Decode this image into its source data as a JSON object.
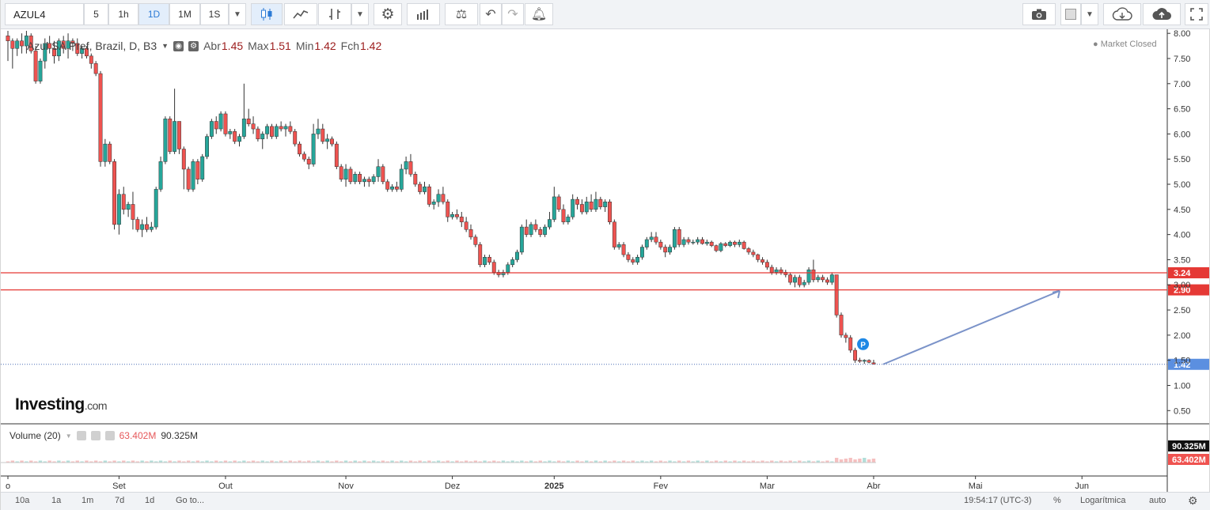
{
  "toolbar": {
    "symbol": "AZUL4",
    "intervals": [
      "5",
      "1h",
      "1D",
      "1M",
      "1S"
    ],
    "active_interval": "1D",
    "icons": [
      "dropdown-icon",
      "candles-icon",
      "line-icon",
      "bars-icon",
      "dropdown-icon",
      "gear-icon",
      "indicators-icon",
      "scales-icon",
      "undo-icon",
      "redo-icon",
      "alert-icon",
      "camera-icon",
      "color-box-icon",
      "dropdown-icon",
      "cloud-download-icon",
      "cloud-upload-icon",
      "fullscreen-icon"
    ]
  },
  "legend": {
    "title": "Azul SA Pref, Brazil, D, B3",
    "open_label": "Abr",
    "open": "1.45",
    "high_label": "Max",
    "high": "1.51",
    "low_label": "Min",
    "low": "1.42",
    "close_label": "Fch",
    "close": "1.42",
    "market_status": "Market Closed"
  },
  "logo": {
    "brand": "Investing",
    "suffix": ".com"
  },
  "volume": {
    "label": "Volume (20)",
    "val1": "63.402M",
    "val2": "90.325M"
  },
  "bottom": {
    "ranges": [
      "10a",
      "1a",
      "1m",
      "7d",
      "1d"
    ],
    "goto": "Go to...",
    "time": "19:54:17 (UTC-3)",
    "percent": "%",
    "log": "Logarítmica",
    "auto": "auto"
  },
  "colors": {
    "up": "#26a69a",
    "down": "#ef5350",
    "level": "#e53935",
    "arrow": "#7b93c9",
    "price_tag": "#5b8fe0"
  },
  "chart_data": {
    "type": "candlestick",
    "symbol": "AZUL4",
    "yaxis_ticks": [
      8.0,
      7.5,
      7.0,
      6.5,
      6.0,
      5.5,
      5.0,
      4.5,
      4.0,
      3.5,
      3.0,
      2.5,
      2.0,
      1.5,
      1.0,
      0.5
    ],
    "ylim": [
      0.3,
      8.05
    ],
    "x_ticks": [
      {
        "i": 0,
        "label": "o"
      },
      {
        "i": 24,
        "label": "Set"
      },
      {
        "i": 47,
        "label": "Out"
      },
      {
        "i": 73,
        "label": "Nov"
      },
      {
        "i": 96,
        "label": "Dez"
      },
      {
        "i": 118,
        "label": "2025"
      },
      {
        "i": 141,
        "label": "Fev"
      },
      {
        "i": 164,
        "label": "Mar"
      },
      {
        "i": 187,
        "label": "Abr"
      },
      {
        "i": 209,
        "label": "Mai"
      },
      {
        "i": 232,
        "label": "Jun"
      }
    ],
    "horizontal_levels": [
      3.24,
      2.9
    ],
    "last_price": 1.42,
    "candles": [
      [
        7.95,
        8.05,
        7.45,
        7.85
      ],
      [
        7.85,
        7.9,
        7.3,
        7.7
      ],
      [
        7.7,
        7.9,
        7.55,
        7.85
      ],
      [
        7.85,
        8.0,
        7.6,
        7.75
      ],
      [
        7.75,
        8.05,
        7.6,
        7.95
      ],
      [
        7.95,
        8.0,
        7.6,
        7.65
      ],
      [
        7.65,
        7.75,
        7.0,
        7.05
      ],
      [
        7.05,
        7.5,
        7.0,
        7.45
      ],
      [
        7.45,
        7.9,
        7.3,
        7.8
      ],
      [
        7.8,
        7.95,
        7.6,
        7.7
      ],
      [
        7.7,
        7.85,
        7.4,
        7.55
      ],
      [
        7.55,
        7.9,
        7.45,
        7.85
      ],
      [
        7.85,
        7.95,
        7.6,
        7.7
      ],
      [
        7.7,
        8.0,
        7.5,
        7.85
      ],
      [
        7.85,
        7.9,
        7.65,
        7.8
      ],
      [
        7.8,
        7.9,
        7.55,
        7.6
      ],
      [
        7.6,
        7.75,
        7.5,
        7.7
      ],
      [
        7.7,
        7.75,
        7.5,
        7.55
      ],
      [
        7.55,
        7.6,
        7.3,
        7.4
      ],
      [
        7.4,
        7.45,
        7.15,
        7.2
      ],
      [
        7.2,
        7.25,
        5.35,
        5.45
      ],
      [
        5.45,
        5.9,
        5.35,
        5.8
      ],
      [
        5.8,
        5.85,
        5.4,
        5.45
      ],
      [
        5.45,
        5.5,
        4.1,
        4.2
      ],
      [
        4.2,
        4.9,
        4.0,
        4.8
      ],
      [
        4.8,
        4.95,
        4.4,
        4.5
      ],
      [
        4.5,
        4.65,
        4.35,
        4.6
      ],
      [
        4.6,
        4.85,
        4.1,
        4.3
      ],
      [
        4.3,
        4.35,
        4.05,
        4.1
      ],
      [
        4.1,
        4.3,
        3.95,
        4.2
      ],
      [
        4.2,
        4.35,
        4.05,
        4.1
      ],
      [
        4.1,
        4.25,
        4.05,
        4.15
      ],
      [
        4.15,
        4.95,
        4.1,
        4.9
      ],
      [
        4.9,
        5.55,
        4.85,
        5.45
      ],
      [
        5.45,
        6.35,
        5.4,
        6.3
      ],
      [
        6.3,
        6.35,
        5.6,
        5.65
      ],
      [
        5.65,
        6.9,
        5.6,
        6.25
      ],
      [
        6.25,
        6.25,
        5.6,
        5.7
      ],
      [
        5.7,
        5.75,
        4.9,
        5.3
      ],
      [
        5.3,
        5.35,
        4.85,
        4.9
      ],
      [
        4.9,
        5.5,
        4.85,
        5.45
      ],
      [
        5.45,
        5.5,
        5.0,
        5.1
      ],
      [
        5.1,
        5.6,
        5.05,
        5.55
      ],
      [
        5.55,
        6.0,
        5.5,
        5.95
      ],
      [
        5.95,
        6.3,
        5.9,
        6.25
      ],
      [
        6.25,
        6.35,
        6.0,
        6.1
      ],
      [
        6.1,
        6.45,
        6.05,
        6.4
      ],
      [
        6.4,
        6.45,
        5.95,
        6.0
      ],
      [
        6.0,
        6.1,
        5.9,
        6.05
      ],
      [
        6.05,
        6.1,
        5.8,
        5.85
      ],
      [
        5.85,
        6.0,
        5.75,
        5.95
      ],
      [
        5.95,
        7.0,
        5.9,
        6.3
      ],
      [
        6.3,
        6.5,
        6.15,
        6.2
      ],
      [
        6.2,
        6.35,
        6.0,
        6.1
      ],
      [
        6.1,
        6.15,
        5.85,
        5.9
      ],
      [
        5.9,
        6.05,
        5.7,
        6.0
      ],
      [
        6.0,
        6.2,
        5.9,
        6.15
      ],
      [
        6.15,
        6.2,
        5.9,
        5.95
      ],
      [
        5.95,
        6.2,
        5.9,
        6.15
      ],
      [
        6.15,
        6.25,
        6.05,
        6.1
      ],
      [
        6.1,
        6.2,
        5.95,
        6.15
      ],
      [
        6.15,
        6.25,
        6.0,
        6.05
      ],
      [
        6.05,
        6.1,
        5.75,
        5.8
      ],
      [
        5.8,
        5.85,
        5.55,
        5.6
      ],
      [
        5.6,
        5.65,
        5.45,
        5.5
      ],
      [
        5.5,
        5.55,
        5.3,
        5.4
      ],
      [
        5.4,
        6.2,
        5.35,
        6.0
      ],
      [
        6.0,
        6.3,
        5.9,
        6.1
      ],
      [
        6.1,
        6.2,
        5.8,
        5.85
      ],
      [
        5.85,
        6.0,
        5.7,
        5.9
      ],
      [
        5.9,
        5.95,
        5.75,
        5.8
      ],
      [
        5.8,
        5.85,
        5.3,
        5.35
      ],
      [
        5.35,
        5.4,
        5.05,
        5.1
      ],
      [
        5.1,
        5.4,
        4.95,
        5.3
      ],
      [
        5.3,
        5.35,
        5.0,
        5.05
      ],
      [
        5.05,
        5.25,
        5.0,
        5.2
      ],
      [
        5.2,
        5.25,
        5.0,
        5.05
      ],
      [
        5.05,
        5.15,
        4.95,
        5.1
      ],
      [
        5.1,
        5.15,
        4.95,
        5.05
      ],
      [
        5.05,
        5.2,
        5.0,
        5.15
      ],
      [
        5.15,
        5.5,
        5.05,
        5.35
      ],
      [
        5.35,
        5.4,
        5.0,
        5.05
      ],
      [
        5.05,
        5.1,
        4.85,
        4.9
      ],
      [
        4.9,
        5.0,
        4.85,
        4.95
      ],
      [
        4.95,
        5.05,
        4.85,
        4.9
      ],
      [
        4.9,
        5.4,
        4.85,
        5.3
      ],
      [
        5.3,
        5.55,
        5.2,
        5.45
      ],
      [
        5.45,
        5.6,
        5.15,
        5.2
      ],
      [
        5.2,
        5.25,
        4.95,
        5.0
      ],
      [
        5.0,
        5.05,
        4.8,
        4.85
      ],
      [
        4.85,
        5.05,
        4.8,
        4.95
      ],
      [
        4.95,
        5.0,
        4.55,
        4.6
      ],
      [
        4.6,
        4.7,
        4.5,
        4.65
      ],
      [
        4.65,
        4.9,
        4.55,
        4.8
      ],
      [
        4.8,
        4.95,
        4.6,
        4.65
      ],
      [
        4.65,
        4.7,
        4.25,
        4.35
      ],
      [
        4.35,
        4.45,
        4.3,
        4.4
      ],
      [
        4.4,
        4.5,
        4.3,
        4.35
      ],
      [
        4.35,
        4.45,
        4.15,
        4.25
      ],
      [
        4.25,
        4.35,
        4.05,
        4.1
      ],
      [
        4.1,
        4.2,
        3.9,
        3.95
      ],
      [
        3.95,
        4.0,
        3.75,
        3.8
      ],
      [
        3.8,
        3.85,
        3.35,
        3.4
      ],
      [
        3.4,
        3.6,
        3.35,
        3.55
      ],
      [
        3.55,
        3.6,
        3.4,
        3.45
      ],
      [
        3.45,
        3.5,
        3.2,
        3.25
      ],
      [
        3.25,
        3.3,
        3.15,
        3.2
      ],
      [
        3.2,
        3.3,
        3.15,
        3.25
      ],
      [
        3.25,
        3.45,
        3.2,
        3.4
      ],
      [
        3.4,
        3.55,
        3.35,
        3.5
      ],
      [
        3.5,
        3.7,
        3.45,
        3.65
      ],
      [
        3.65,
        4.2,
        3.6,
        4.15
      ],
      [
        4.15,
        4.3,
        3.95,
        4.0
      ],
      [
        4.0,
        4.25,
        3.95,
        4.2
      ],
      [
        4.2,
        4.3,
        4.05,
        4.1
      ],
      [
        4.1,
        4.15,
        3.95,
        4.0
      ],
      [
        4.0,
        4.2,
        3.95,
        4.15
      ],
      [
        4.15,
        4.45,
        4.1,
        4.3
      ],
      [
        4.3,
        4.95,
        4.25,
        4.75
      ],
      [
        4.75,
        4.8,
        4.45,
        4.5
      ],
      [
        4.5,
        4.6,
        4.2,
        4.25
      ],
      [
        4.25,
        4.4,
        4.2,
        4.35
      ],
      [
        4.35,
        4.8,
        4.3,
        4.7
      ],
      [
        4.7,
        4.75,
        4.5,
        4.6
      ],
      [
        4.6,
        4.7,
        4.4,
        4.45
      ],
      [
        4.45,
        4.75,
        4.4,
        4.65
      ],
      [
        4.65,
        4.8,
        4.45,
        4.5
      ],
      [
        4.5,
        4.85,
        4.45,
        4.7
      ],
      [
        4.7,
        4.75,
        4.5,
        4.55
      ],
      [
        4.55,
        4.7,
        4.45,
        4.65
      ],
      [
        4.65,
        4.7,
        4.2,
        4.25
      ],
      [
        4.25,
        4.3,
        3.7,
        3.75
      ],
      [
        3.75,
        3.85,
        3.7,
        3.8
      ],
      [
        3.8,
        3.85,
        3.55,
        3.6
      ],
      [
        3.6,
        3.65,
        3.45,
        3.5
      ],
      [
        3.5,
        3.55,
        3.4,
        3.45
      ],
      [
        3.45,
        3.6,
        3.4,
        3.55
      ],
      [
        3.55,
        3.8,
        3.5,
        3.75
      ],
      [
        3.75,
        3.95,
        3.7,
        3.9
      ],
      [
        3.9,
        4.05,
        3.85,
        3.95
      ],
      [
        3.95,
        4.05,
        3.8,
        3.85
      ],
      [
        3.85,
        3.9,
        3.7,
        3.75
      ],
      [
        3.75,
        3.8,
        3.55,
        3.65
      ],
      [
        3.65,
        3.8,
        3.6,
        3.75
      ],
      [
        3.75,
        4.15,
        3.7,
        4.1
      ],
      [
        4.1,
        4.15,
        3.75,
        3.8
      ],
      [
        3.8,
        3.95,
        3.75,
        3.9
      ],
      [
        3.9,
        3.95,
        3.8,
        3.85
      ],
      [
        3.85,
        3.9,
        3.8,
        3.85
      ],
      [
        3.85,
        3.95,
        3.8,
        3.9
      ],
      [
        3.9,
        3.95,
        3.8,
        3.82
      ],
      [
        3.82,
        3.9,
        3.78,
        3.85
      ],
      [
        3.85,
        3.88,
        3.75,
        3.78
      ],
      [
        3.78,
        3.8,
        3.65,
        3.68
      ],
      [
        3.68,
        3.85,
        3.65,
        3.82
      ],
      [
        3.82,
        3.85,
        3.75,
        3.78
      ],
      [
        3.78,
        3.88,
        3.75,
        3.85
      ],
      [
        3.85,
        3.88,
        3.75,
        3.8
      ],
      [
        3.8,
        3.9,
        3.75,
        3.85
      ],
      [
        3.85,
        3.88,
        3.7,
        3.72
      ],
      [
        3.72,
        3.75,
        3.6,
        3.65
      ],
      [
        3.65,
        3.7,
        3.55,
        3.6
      ],
      [
        3.6,
        3.62,
        3.45,
        3.5
      ],
      [
        3.5,
        3.55,
        3.4,
        3.45
      ],
      [
        3.45,
        3.5,
        3.3,
        3.35
      ],
      [
        3.35,
        3.4,
        3.2,
        3.25
      ],
      [
        3.25,
        3.35,
        3.2,
        3.3
      ],
      [
        3.3,
        3.35,
        3.2,
        3.25
      ],
      [
        3.25,
        3.3,
        3.15,
        3.2
      ],
      [
        3.2,
        3.25,
        3.0,
        3.05
      ],
      [
        3.05,
        3.2,
        2.95,
        3.15
      ],
      [
        3.15,
        3.2,
        2.95,
        3.0
      ],
      [
        3.0,
        3.1,
        2.95,
        3.05
      ],
      [
        3.05,
        3.35,
        3.0,
        3.3
      ],
      [
        3.3,
        3.5,
        3.05,
        3.1
      ],
      [
        3.1,
        3.2,
        3.05,
        3.15
      ],
      [
        3.15,
        3.2,
        3.05,
        3.1
      ],
      [
        3.1,
        3.15,
        3.0,
        3.05
      ],
      [
        3.05,
        3.25,
        3.0,
        3.2
      ],
      [
        3.2,
        3.2,
        2.35,
        2.4
      ],
      [
        2.4,
        2.45,
        1.95,
        2.0
      ],
      [
        2.0,
        2.05,
        1.85,
        1.95
      ],
      [
        1.95,
        2.0,
        1.65,
        1.7
      ],
      [
        1.7,
        1.75,
        1.45,
        1.5
      ],
      [
        1.5,
        1.55,
        1.45,
        1.48
      ],
      [
        1.48,
        1.52,
        1.43,
        1.5
      ],
      [
        1.5,
        1.52,
        1.44,
        1.46
      ],
      [
        1.45,
        1.51,
        1.42,
        1.42
      ]
    ]
  }
}
